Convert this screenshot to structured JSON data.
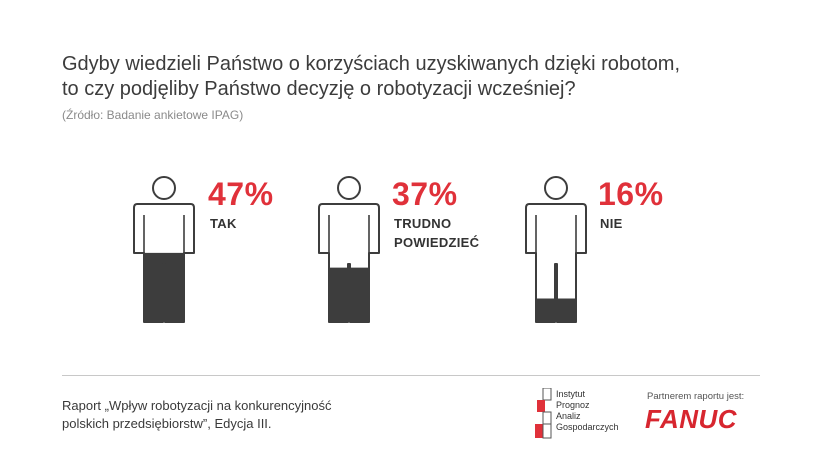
{
  "header": {
    "title_line1": "Gdyby wiedzieli Państwo o korzyściach uzyskiwanych dzięki robotom,",
    "title_line2": "to czy podjęliby Państwo decyzję o robotyzacji wcześniej?",
    "source": "(Źródło: Badanie ankietowe IPAG)"
  },
  "chart_data": {
    "type": "pictogram",
    "categories": [
      "TAK",
      "TRUDNO POWIEDZIEĆ",
      "NIE"
    ],
    "values": [
      47,
      37,
      16
    ],
    "value_labels": [
      "47%",
      "37%",
      "16%"
    ],
    "label_lines": [
      [
        "TAK"
      ],
      [
        "TRUDNO",
        "POWIEDZIEĆ"
      ],
      [
        "NIE"
      ]
    ],
    "unit": "%",
    "fill_color": "#3d3d3d",
    "accent_color": "#e0313a"
  },
  "footer": {
    "report_line1": "Raport „Wpływ robotyzacji na konkurencyjność",
    "report_line2": "polskich przedsiębiorstw”, Edycja III.",
    "ipag_lines": [
      "Instytut",
      "Prognoz",
      "Analiz",
      "Gospodarczych"
    ],
    "partner_label": "Partnerem raportu jest:",
    "fanuc_logo": "FANUC"
  }
}
